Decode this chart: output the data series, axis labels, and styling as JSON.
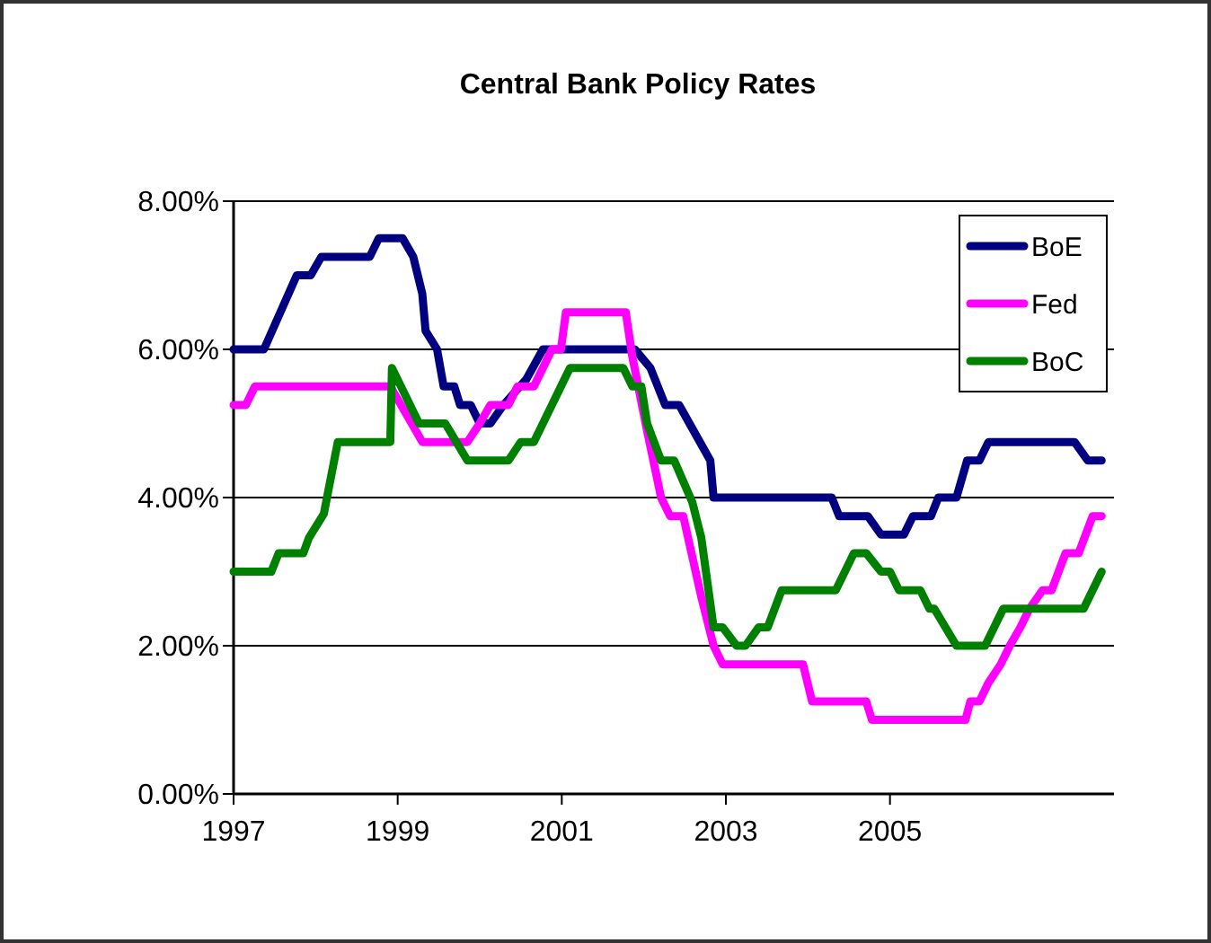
{
  "chart_data": {
    "type": "line",
    "title": "Central Bank Policy Rates",
    "xlim": [
      1997,
      2007.73
    ],
    "xticks": [
      1997,
      1999,
      2001,
      2003,
      2005
    ],
    "ylim": [
      0,
      8
    ],
    "yticks": [
      {
        "value": 0,
        "label": "0.00%"
      },
      {
        "value": 2,
        "label": "2.00%"
      },
      {
        "value": 4,
        "label": "4.00%"
      },
      {
        "value": 6,
        "label": "6.00%"
      },
      {
        "value": 8,
        "label": "8.00%"
      }
    ],
    "grid": "y",
    "legend": "top right",
    "marker": "none",
    "line_style": "solid",
    "series": [
      {
        "name": "BoE",
        "color": "#000080",
        "x": [
          1997,
          1997.37,
          1997.77,
          1997.94,
          1998.07,
          1998.66,
          1998.77,
          1999.06,
          1999.19,
          1999.3,
          1999.34,
          1999.48,
          1999.56,
          1999.69,
          1999.76,
          1999.89,
          2000,
          2000.13,
          2000.29,
          2000.57,
          2000.77,
          2001.89,
          2002.08,
          2002.26,
          2002.43,
          2002.81,
          2002.85,
          2004.29,
          2004.38,
          2004.73,
          2004.89,
          2005.17,
          2005.28,
          2005.5,
          2005.59,
          2005.81,
          2005.94,
          2006.09,
          2006.2,
          2007.25,
          2007.41,
          2007.58
        ],
        "values": [
          6,
          6,
          7,
          7,
          7.25,
          7.25,
          7.5,
          7.5,
          7.25,
          6.75,
          6.25,
          6,
          5.5,
          5.5,
          5.25,
          5.25,
          5,
          5,
          5.25,
          5.6,
          6,
          6,
          5.75,
          5.25,
          5.25,
          4.5,
          4,
          4,
          3.75,
          3.75,
          3.5,
          3.5,
          3.75,
          3.75,
          4,
          4,
          4.5,
          4.5,
          4.75,
          4.75,
          4.5,
          4.5
        ]
      },
      {
        "name": "Fed",
        "color": "#ff00ff",
        "x": [
          1997,
          1997.15,
          1997.26,
          1998.91,
          1999.3,
          1999.85,
          2000,
          2000.13,
          2000.35,
          2000.46,
          2000.66,
          2000.88,
          2000.99,
          2001.05,
          2001.78,
          2001.86,
          2002.04,
          2002.21,
          2002.32,
          2002.48,
          2002.7,
          2002.85,
          2002.96,
          2003.94,
          2004.05,
          2004.71,
          2004.78,
          2005.92,
          2005.98,
          2006.09,
          2006.2,
          2006.35,
          2006.46,
          2006.59,
          2006.7,
          2006.86,
          2006.97,
          2007.14,
          2007.3,
          2007.47,
          2007.58
        ],
        "values": [
          5.25,
          5.25,
          5.5,
          5.5,
          4.75,
          4.75,
          5,
          5.25,
          5.25,
          5.5,
          5.5,
          6,
          6,
          6.5,
          6.5,
          5.9,
          4.9,
          4,
          3.75,
          3.75,
          2.66,
          2,
          1.75,
          1.75,
          1.25,
          1.25,
          1,
          1,
          1.25,
          1.25,
          1.5,
          1.75,
          2,
          2.25,
          2.5,
          2.75,
          2.75,
          3.25,
          3.25,
          3.75,
          3.75
        ]
      },
      {
        "name": "BoC",
        "color": "#008000",
        "x": [
          1997,
          1997.46,
          1997.55,
          1997.85,
          1997.92,
          1998.1,
          1998.27,
          1998.91,
          1998.93,
          1999.26,
          1999.58,
          1999.85,
          2000.35,
          2000.5,
          2000.66,
          2000.88,
          2000.99,
          2001.1,
          2001.75,
          2001.86,
          2001.97,
          2002.04,
          2002.21,
          2002.37,
          2002.59,
          2002.7,
          2002.85,
          2002.96,
          2003.13,
          2003.24,
          2003.4,
          2003.51,
          2003.68,
          2004.34,
          2004.56,
          2004.71,
          2004.89,
          2005,
          2005.11,
          2005.37,
          2005.48,
          2005.54,
          2005.81,
          2006.16,
          2006.38,
          2007.36,
          2007.58
        ],
        "values": [
          3,
          3,
          3.25,
          3.25,
          3.46,
          3.78,
          4.75,
          4.75,
          5.75,
          5,
          5,
          4.5,
          4.5,
          4.75,
          4.75,
          5.25,
          5.5,
          5.75,
          5.75,
          5.5,
          5.5,
          5,
          4.5,
          4.5,
          3.94,
          3.46,
          2.25,
          2.25,
          2,
          2,
          2.25,
          2.25,
          2.75,
          2.75,
          3.25,
          3.25,
          3,
          3,
          2.75,
          2.75,
          2.5,
          2.5,
          2,
          2,
          2.5,
          2.5,
          3
        ]
      }
    ]
  }
}
